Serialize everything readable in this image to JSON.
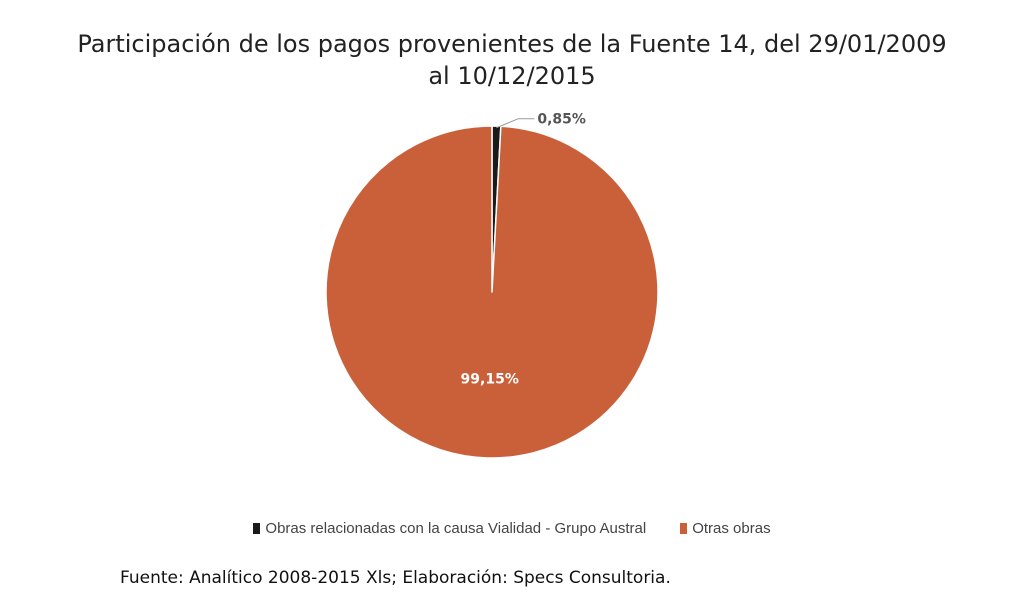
{
  "chart_data": {
    "type": "pie",
    "title_line1": "Participación de los pagos provenientes de la Fuente 14, del 29/01/2009",
    "title_line2": "al 10/12/2015",
    "slices": [
      {
        "label": "Obras relacionadas con la causa Vialidad - Grupo Austral",
        "value": 0.85,
        "value_label": "0,85%",
        "color": "#1a1a1a"
      },
      {
        "label": "Otras obras",
        "value": 99.15,
        "value_label": "99,15%",
        "color": "#c9603a"
      }
    ],
    "legend_position": "bottom"
  },
  "source": "Fuente: Analítico 2008-2015 Xls; Elaboración: Specs Consultoria."
}
